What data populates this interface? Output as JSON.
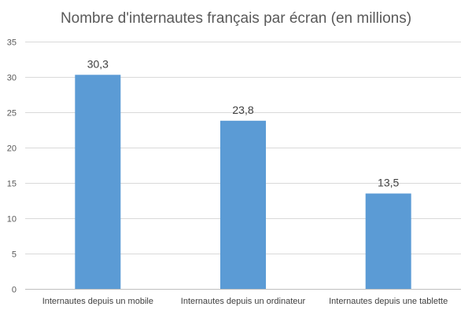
{
  "chart_data": {
    "type": "bar",
    "title": "Nombre d'internautes français par écran (en millions)",
    "xlabel": "",
    "ylabel": "",
    "categories": [
      "Internautes depuis un mobile",
      "Internautes depuis un ordinateur",
      "Internautes depuis une tablette"
    ],
    "values": [
      30.3,
      23.8,
      13.5
    ],
    "data_labels": [
      "30,3",
      "23,8",
      "13,5"
    ],
    "ylim": [
      0,
      35
    ],
    "yticks": [
      0,
      5,
      10,
      15,
      20,
      25,
      30,
      35
    ],
    "ytick_labels": [
      "0",
      "5",
      "10",
      "15",
      "20",
      "25",
      "30",
      "35"
    ],
    "grid": true,
    "legend": "none",
    "colors": {
      "bar": "#5b9bd5",
      "grid": "#d9d9d9",
      "axis": "#bfbfbf"
    }
  }
}
